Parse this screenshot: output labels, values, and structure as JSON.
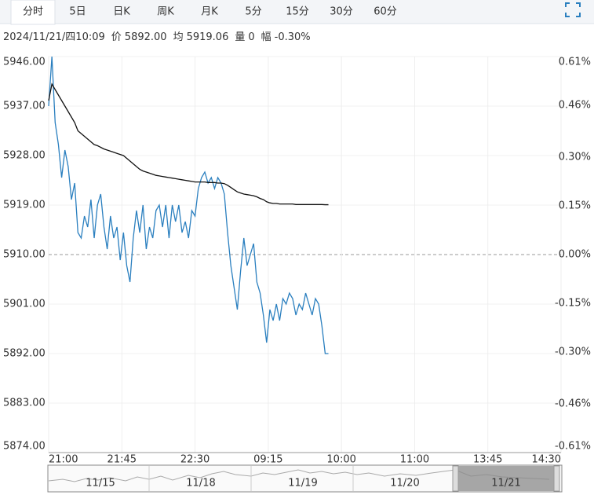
{
  "tabs": [
    "分时",
    "5日",
    "日K",
    "周K",
    "月K",
    "5分",
    "15分",
    "30分",
    "60分"
  ],
  "active_tab": 0,
  "info": {
    "datetime": "2024/11/21/四10:09",
    "items": [
      {
        "label": "价",
        "value": "5892.00"
      },
      {
        "label": "均",
        "value": "5919.06"
      },
      {
        "label": "量",
        "value": "0"
      },
      {
        "label": "幅",
        "value": "-0.30%"
      }
    ]
  },
  "navigator": {
    "dates": [
      "11/15",
      "11/18",
      "11/19",
      "11/20",
      "11/21"
    ]
  },
  "chart_data": {
    "type": "line",
    "xlim": [
      0,
      315
    ],
    "xticks": [
      {
        "value": 0,
        "label": "21:00"
      },
      {
        "value": 45,
        "label": "21:45"
      },
      {
        "value": 90,
        "label": "22:30"
      },
      {
        "value": 135,
        "label": "09:15"
      },
      {
        "value": 180,
        "label": "10:00"
      },
      {
        "value": 225,
        "label": "11:00"
      },
      {
        "value": 270,
        "label": "13:45"
      },
      {
        "value": 315,
        "label": "14:30"
      }
    ],
    "ylim": [
      5874,
      5946
    ],
    "yticks": [
      {
        "value": 5946,
        "label": "5946.00"
      },
      {
        "value": 5937,
        "label": "5937.00"
      },
      {
        "value": 5928,
        "label": "5928.00"
      },
      {
        "value": 5919,
        "label": "5919.00"
      },
      {
        "value": 5910,
        "label": "5910.00"
      },
      {
        "value": 5901,
        "label": "5901.00"
      },
      {
        "value": 5892,
        "label": "5892.00"
      },
      {
        "value": 5883,
        "label": "5883.00"
      },
      {
        "value": 5874,
        "label": "5874.00"
      }
    ],
    "y2lim": [
      -0.61,
      0.61
    ],
    "y2ticks": [
      {
        "value": 0.61,
        "label": "0.61%"
      },
      {
        "value": 0.46,
        "label": "0.46%"
      },
      {
        "value": 0.3,
        "label": "0.30%"
      },
      {
        "value": 0.15,
        "label": "0.15%"
      },
      {
        "value": 0,
        "label": "0.00%"
      },
      {
        "value": -0.15,
        "label": "-0.15%"
      },
      {
        "value": -0.3,
        "label": "-0.30%"
      },
      {
        "value": -0.46,
        "label": "-0.46%"
      },
      {
        "value": -0.61,
        "label": "-0.61%"
      }
    ],
    "baseline": 5910,
    "grid": true,
    "up_color": "#e0262b",
    "down_color": "#1a9a1a",
    "flat_color": "#222222",
    "x": [
      0,
      2,
      4,
      6,
      8,
      10,
      12,
      14,
      16,
      18,
      20,
      22,
      24,
      26,
      28,
      30,
      32,
      34,
      36,
      38,
      40,
      42,
      44,
      46,
      48,
      50,
      52,
      54,
      56,
      58,
      60,
      62,
      64,
      66,
      68,
      70,
      72,
      74,
      76,
      78,
      80,
      82,
      84,
      86,
      88,
      90,
      92,
      94,
      96,
      98,
      100,
      102,
      104,
      106,
      108,
      110,
      112,
      114,
      116,
      118,
      120,
      122,
      124,
      126,
      128,
      130,
      132,
      134,
      136,
      138,
      140,
      142,
      144,
      146,
      148,
      150,
      152,
      154,
      156,
      158,
      160,
      162,
      164,
      166,
      168,
      170,
      172
    ],
    "series": [
      {
        "color": "#2a7fbf",
        "values": [
          5937,
          5946,
          5934,
          5930,
          5924,
          5929,
          5926,
          5920,
          5923,
          5914,
          5913,
          5917,
          5915,
          5920,
          5913,
          5919,
          5921,
          5915,
          5911,
          5917,
          5913,
          5915,
          5909,
          5914,
          5908,
          5905,
          5913,
          5918,
          5914,
          5919,
          5911,
          5915,
          5913,
          5918,
          5919,
          5915,
          5919,
          5913,
          5919,
          5916,
          5919,
          5914,
          5916,
          5913,
          5918,
          5917,
          5922,
          5924,
          5925,
          5923,
          5924,
          5922,
          5924,
          5923,
          5921,
          5914,
          5908,
          5904,
          5900,
          5907,
          5913,
          5908,
          5910,
          5912,
          5905,
          5903,
          5899,
          5894,
          5900,
          5898,
          5901,
          5898,
          5902,
          5901,
          5903,
          5902,
          5899,
          5901,
          5900,
          5903,
          5901,
          5899,
          5902,
          5901,
          5897,
          5892,
          5892
        ]
      },
      {
        "color": "#111111",
        "values": [
          5938,
          5941,
          5940,
          5939,
          5938,
          5937,
          5936,
          5935,
          5934,
          5932.5,
          5932,
          5931.5,
          5931,
          5930.5,
          5930,
          5929.8,
          5929.5,
          5929.2,
          5929,
          5928.8,
          5928.6,
          5928.4,
          5928.2,
          5928,
          5927.5,
          5927,
          5926.5,
          5926,
          5925.5,
          5925.2,
          5925,
          5924.8,
          5924.6,
          5924.4,
          5924.3,
          5924.2,
          5924.1,
          5924,
          5923.9,
          5923.8,
          5923.7,
          5923.6,
          5923.5,
          5923.4,
          5923.3,
          5923.2,
          5923.2,
          5923.2,
          5923.2,
          5923.1,
          5923.1,
          5923.1,
          5923,
          5923,
          5922.9,
          5922.6,
          5922.2,
          5921.8,
          5921.4,
          5921.2,
          5921,
          5920.9,
          5920.8,
          5920.7,
          5920.5,
          5920.2,
          5920,
          5919.6,
          5919.4,
          5919.3,
          5919.3,
          5919.2,
          5919.2,
          5919.2,
          5919.2,
          5919.2,
          5919.1,
          5919.1,
          5919.1,
          5919.1,
          5919.1,
          5919.1,
          5919.1,
          5919.1,
          5919.1,
          5919.06,
          5919.06
        ]
      }
    ]
  }
}
